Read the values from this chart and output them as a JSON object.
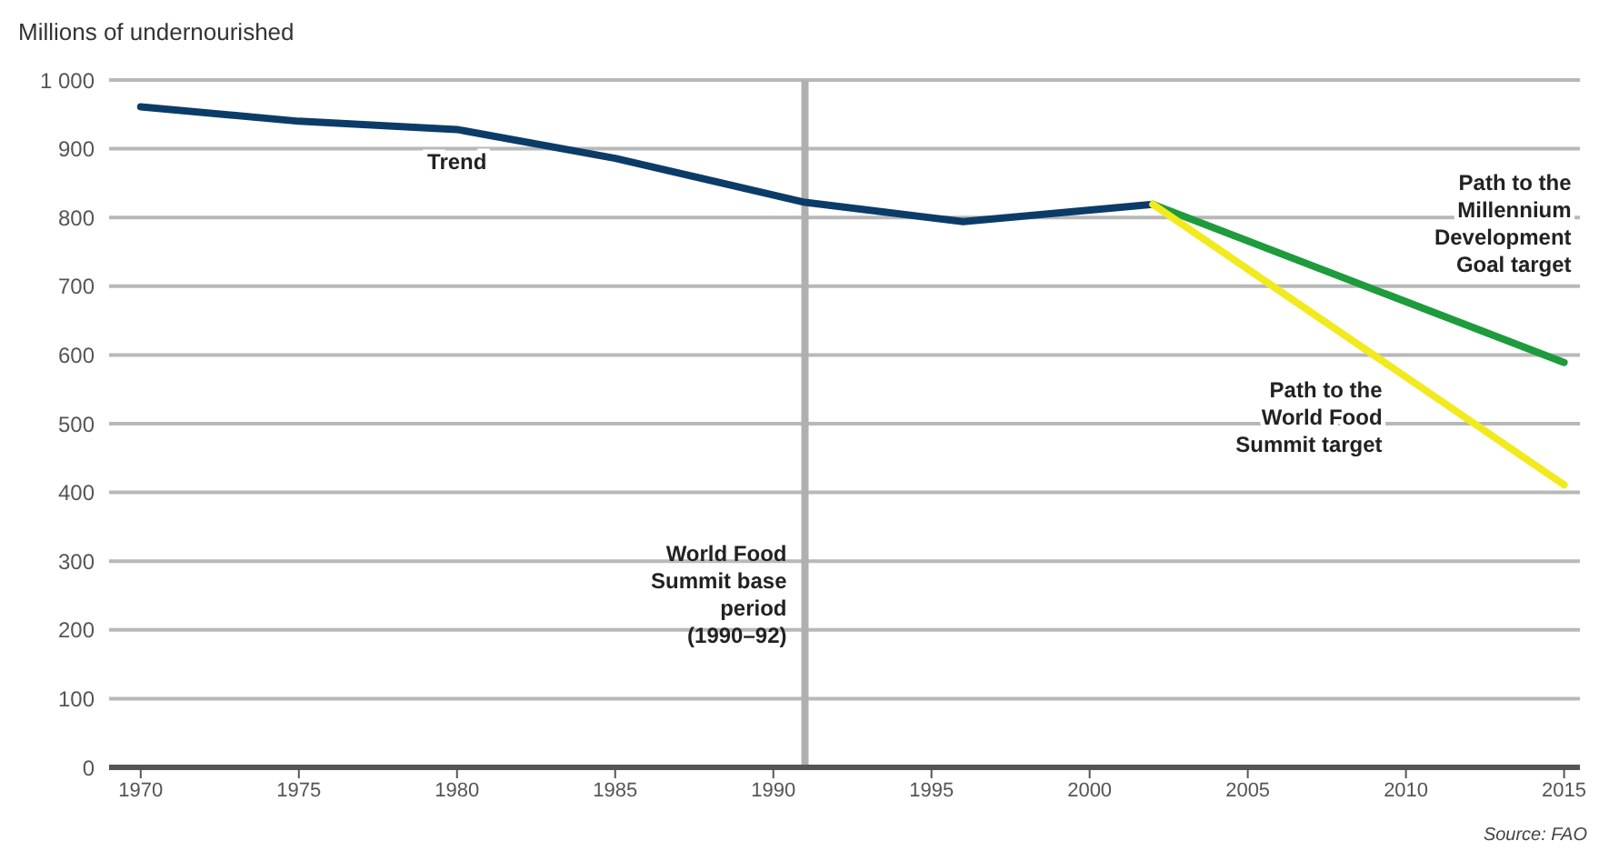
{
  "chart_data": {
    "type": "line",
    "ylabel": "Millions of undernourished",
    "xlim": [
      1969,
      2015.5
    ],
    "xticks": [
      1970,
      1975,
      1980,
      1985,
      1990,
      1995,
      2000,
      2005,
      2010,
      2015
    ],
    "ylim": [
      0,
      1000
    ],
    "yticks": [
      0,
      100,
      200,
      300,
      400,
      500,
      600,
      700,
      800,
      900,
      {
        "value": 1000,
        "label": "1 000"
      }
    ],
    "grid": "y",
    "series": [
      {
        "name": "Trend",
        "color": "#0b3c68",
        "x": [
          1970,
          1975,
          1980,
          1985,
          1991,
          1996,
          2002
        ],
        "values": [
          961,
          940,
          928,
          886,
          822,
          794,
          819
        ]
      },
      {
        "name": "Path to the Millennium Development Goal target",
        "color": "#1e9b3c",
        "x": [
          2002,
          2015
        ],
        "values": [
          819,
          589
        ]
      },
      {
        "name": "Path to the World Food Summit target",
        "color": "#f2ea1e",
        "x": [
          2002,
          2015
        ],
        "values": [
          819,
          411
        ]
      }
    ],
    "ref_lines": [
      {
        "axis": "x",
        "value": 1991,
        "label": "World Food Summit base period (1990–92)",
        "color": "#b0b0b0"
      }
    ],
    "annotations": [
      "Source: FAO"
    ]
  }
}
